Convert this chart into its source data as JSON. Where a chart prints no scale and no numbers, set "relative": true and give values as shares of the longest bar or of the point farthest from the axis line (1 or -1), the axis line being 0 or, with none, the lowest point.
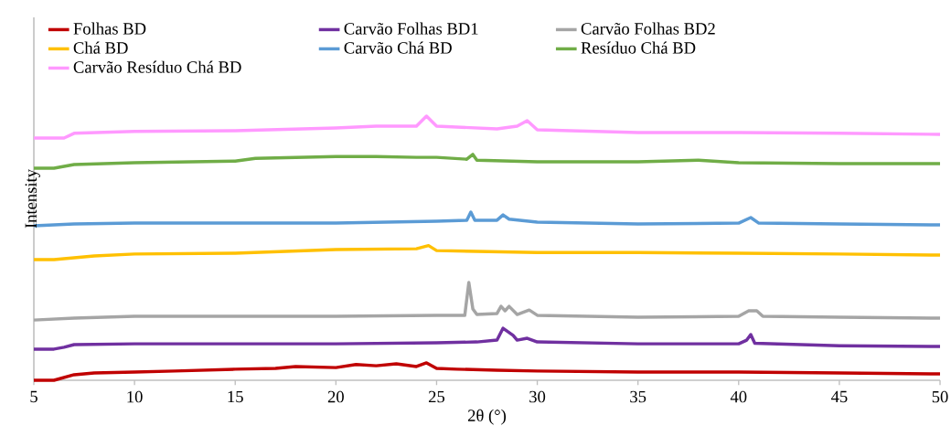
{
  "chart_data": {
    "type": "line",
    "xlabel": "2θ (°)",
    "ylabel": "Intensity",
    "relative": true,
    "legend": "top",
    "xlim": [
      5,
      50
    ],
    "xticks": [
      5,
      10,
      15,
      20,
      25,
      30,
      35,
      40,
      45,
      50
    ],
    "series": [
      {
        "name": "Folhas BD",
        "color": "#c00000",
        "x": [
          5,
          6,
          7,
          8,
          10,
          12,
          15,
          17,
          18,
          20,
          21,
          22,
          23,
          24,
          24.5,
          25,
          26,
          28,
          30,
          35,
          40,
          45,
          50
        ],
        "values": [
          0,
          0,
          0.021,
          0.028,
          0.031,
          0.035,
          0.042,
          0.045,
          0.052,
          0.048,
          0.06,
          0.055,
          0.062,
          0.052,
          0.066,
          0.045,
          0.042,
          0.038,
          0.035,
          0.031,
          0.031,
          0.028,
          0.024
        ]
      },
      {
        "name": "Carvão Folhas BD1",
        "color": "#7030a0",
        "x": [
          5,
          6,
          6.5,
          7,
          10,
          15,
          20,
          25,
          27,
          28,
          28.3,
          28.8,
          29,
          29.5,
          30,
          35,
          40,
          40.4,
          40.6,
          40.8,
          45,
          50
        ],
        "values": [
          0.118,
          0.118,
          0.125,
          0.135,
          0.138,
          0.138,
          0.138,
          0.142,
          0.145,
          0.152,
          0.197,
          0.17,
          0.152,
          0.159,
          0.145,
          0.138,
          0.138,
          0.152,
          0.173,
          0.14,
          0.131,
          0.128
        ]
      },
      {
        "name": "Carvão Folhas BD2",
        "color": "#a5a5a5",
        "x": [
          5,
          7,
          10,
          15,
          20,
          25,
          26.4,
          26.6,
          26.8,
          27,
          28,
          28.2,
          28.4,
          28.6,
          29,
          29.6,
          30,
          35,
          40,
          40.5,
          40.9,
          41.2,
          45,
          50
        ],
        "values": [
          0.228,
          0.235,
          0.242,
          0.242,
          0.242,
          0.246,
          0.246,
          0.37,
          0.27,
          0.249,
          0.253,
          0.28,
          0.263,
          0.28,
          0.249,
          0.266,
          0.246,
          0.239,
          0.242,
          0.263,
          0.263,
          0.242,
          0.239,
          0.235
        ]
      },
      {
        "name": "Chá BD",
        "color": "#ffc000",
        "x": [
          5,
          6,
          8,
          10,
          15,
          20,
          24,
          24.6,
          25,
          30,
          35,
          40,
          45,
          50
        ],
        "values": [
          0.457,
          0.457,
          0.471,
          0.478,
          0.481,
          0.495,
          0.498,
          0.51,
          0.491,
          0.484,
          0.484,
          0.481,
          0.478,
          0.474
        ]
      },
      {
        "name": "Carvão Chá BD",
        "color": "#5b9bd5",
        "x": [
          5,
          7,
          10,
          15,
          20,
          25,
          26.5,
          26.7,
          26.9,
          28,
          28.3,
          28.6,
          30,
          35,
          40,
          40.6,
          41,
          45,
          50
        ],
        "values": [
          0.585,
          0.592,
          0.595,
          0.595,
          0.595,
          0.602,
          0.606,
          0.637,
          0.606,
          0.606,
          0.626,
          0.61,
          0.599,
          0.592,
          0.595,
          0.616,
          0.595,
          0.592,
          0.588
        ]
      },
      {
        "name": "Resíduo Chá BD",
        "color": "#70ad47",
        "x": [
          5,
          6,
          7,
          10,
          15,
          16,
          20,
          22,
          24,
          25,
          26.5,
          26.8,
          27,
          30,
          35,
          38,
          40,
          45,
          50
        ],
        "values": [
          0.803,
          0.803,
          0.817,
          0.824,
          0.83,
          0.84,
          0.847,
          0.847,
          0.844,
          0.844,
          0.837,
          0.855,
          0.833,
          0.827,
          0.827,
          0.833,
          0.824,
          0.82,
          0.82
        ]
      },
      {
        "name": "Carvão Resíduo Chá BD",
        "color": "#ff99ff",
        "x": [
          5,
          6.5,
          7,
          10,
          15,
          20,
          22,
          24,
          24.5,
          25,
          28,
          29,
          29.5,
          30,
          35,
          40,
          45,
          50
        ],
        "values": [
          0.917,
          0.917,
          0.935,
          0.942,
          0.945,
          0.955,
          0.962,
          0.962,
          1.0,
          0.962,
          0.952,
          0.962,
          0.983,
          0.948,
          0.938,
          0.938,
          0.935,
          0.931
        ]
      }
    ]
  }
}
